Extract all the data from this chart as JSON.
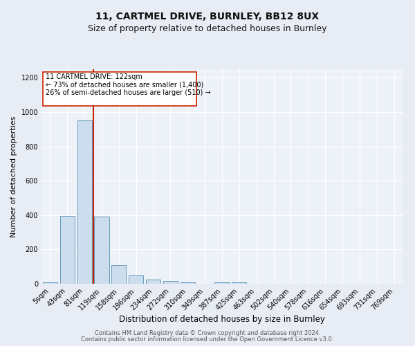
{
  "title1": "11, CARTMEL DRIVE, BURNLEY, BB12 8UX",
  "title2": "Size of property relative to detached houses in Burnley",
  "xlabel": "Distribution of detached houses by size in Burnley",
  "ylabel": "Number of detached properties",
  "footer1": "Contains HM Land Registry data © Crown copyright and database right 2024.",
  "footer2": "Contains public sector information licensed under the Open Government Licence v3.0.",
  "bin_labels": [
    "5sqm",
    "43sqm",
    "81sqm",
    "119sqm",
    "158sqm",
    "196sqm",
    "234sqm",
    "272sqm",
    "310sqm",
    "349sqm",
    "387sqm",
    "425sqm",
    "463sqm",
    "502sqm",
    "540sqm",
    "578sqm",
    "616sqm",
    "654sqm",
    "693sqm",
    "731sqm",
    "769sqm"
  ],
  "bar_values": [
    10,
    395,
    950,
    390,
    110,
    50,
    25,
    15,
    10,
    0,
    10,
    10,
    0,
    0,
    0,
    0,
    0,
    0,
    0,
    0,
    0
  ],
  "bar_color": "#ccdded",
  "bar_edge_color": "#6699bb",
  "marker_color": "#cc2200",
  "annotation_text": "11 CARTMEL DRIVE: 122sqm\n← 73% of detached houses are smaller (1,400)\n26% of semi-detached houses are larger (510) →",
  "annotation_box_color": "#ffffff",
  "annotation_box_edge": "#cc2200",
  "ylim": [
    0,
    1250
  ],
  "yticks": [
    0,
    200,
    400,
    600,
    800,
    1000,
    1200
  ],
  "bg_color": "#e8edf5",
  "plot_bg_color": "#edf2f8",
  "grid_color": "#ffffff",
  "title1_fontsize": 10,
  "title2_fontsize": 9,
  "xlabel_fontsize": 8.5,
  "ylabel_fontsize": 8,
  "tick_fontsize": 7,
  "annotation_fontsize": 7,
  "footer_fontsize": 6
}
